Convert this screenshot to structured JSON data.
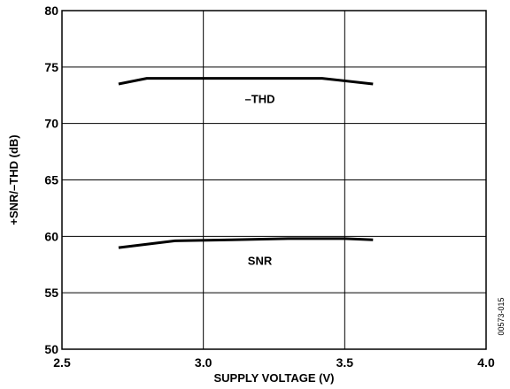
{
  "chart_data": {
    "type": "line",
    "xlabel": "SUPPLY VOLTAGE (V)",
    "ylabel": "+SNR/–THD (dB)",
    "xlim": [
      2.5,
      4.0
    ],
    "ylim": [
      50,
      80
    ],
    "xticks": [
      2.5,
      3.0,
      3.5,
      4.0
    ],
    "xtick_labels": [
      "2.5",
      "3.0",
      "3.5",
      "4.0"
    ],
    "yticks": [
      50,
      55,
      60,
      65,
      70,
      75,
      80
    ],
    "ytick_labels": [
      "50",
      "55",
      "60",
      "65",
      "70",
      "75",
      "80"
    ],
    "grid": true,
    "series": [
      {
        "name": "–THD",
        "x": [
          2.7,
          2.8,
          3.0,
          3.2,
          3.42,
          3.6
        ],
        "y": [
          73.5,
          74.0,
          74.0,
          74.0,
          74.0,
          73.5
        ]
      },
      {
        "name": "SNR",
        "x": [
          2.7,
          2.9,
          3.1,
          3.3,
          3.5,
          3.6
        ],
        "y": [
          59.0,
          59.6,
          59.7,
          59.8,
          59.8,
          59.7
        ]
      }
    ],
    "annotations": [
      "00573-015"
    ]
  }
}
